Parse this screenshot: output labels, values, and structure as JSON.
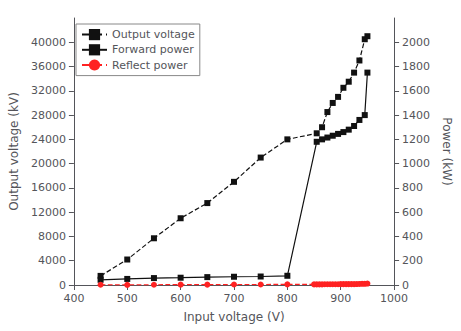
{
  "chart_data": {
    "type": "line",
    "xlabel": "Input voltage (V)",
    "ylabel": "Output voltage (kV)",
    "y2label": "Power (kW)",
    "xlim": [
      400,
      1000
    ],
    "xticks": [
      400,
      500,
      600,
      700,
      800,
      900,
      1000
    ],
    "ylim": [
      0,
      44000
    ],
    "yticks": [
      0,
      4000,
      8000,
      12000,
      16000,
      20000,
      24000,
      28000,
      32000,
      36000,
      40000
    ],
    "y2lim": [
      0,
      2200
    ],
    "y2ticks": [
      0,
      200,
      400,
      600,
      800,
      1000,
      1200,
      1400,
      1600,
      1800,
      2000
    ],
    "grid": false,
    "legend": "upper left",
    "series": [
      {
        "name": "Output voltage",
        "axis": "y",
        "color": "#111111",
        "marker": "square",
        "line_style": "dashed",
        "x": [
          450,
          500,
          550,
          600,
          650,
          700,
          750,
          800,
          855,
          865,
          875,
          885,
          895,
          905,
          915,
          925,
          935,
          945,
          950
        ],
        "values": [
          1500,
          4200,
          7700,
          11000,
          13500,
          17000,
          21000,
          24000,
          25000,
          26000,
          28500,
          30000,
          31000,
          32500,
          33500,
          35000,
          37000,
          40500,
          41000
        ]
      },
      {
        "name": "Forward power",
        "axis": "y2",
        "color": "#111111",
        "marker": "square",
        "line_style": "solid",
        "x": [
          450,
          500,
          550,
          600,
          650,
          700,
          750,
          800,
          855,
          865,
          875,
          885,
          895,
          905,
          915,
          925,
          935,
          945,
          950
        ],
        "values": [
          43,
          50,
          57,
          60,
          65,
          68,
          70,
          76,
          1180,
          1200,
          1215,
          1230,
          1245,
          1260,
          1280,
          1310,
          1360,
          1400,
          1750
        ]
      },
      {
        "name": "Reflect power",
        "axis": "y2",
        "color": "#ff2222",
        "marker": "circle",
        "line_style": "dashed",
        "x": [
          450,
          500,
          550,
          600,
          650,
          700,
          750,
          800,
          850,
          855,
          860,
          865,
          870,
          875,
          880,
          885,
          890,
          895,
          900,
          905,
          910,
          915,
          920,
          925,
          930,
          935,
          940,
          945,
          950
        ],
        "values": [
          2,
          1,
          2,
          3,
          3,
          4,
          4,
          5,
          5,
          5,
          5,
          5,
          6,
          6,
          6,
          6,
          6,
          6,
          7,
          7,
          7,
          7,
          7,
          7,
          8,
          9,
          10,
          10,
          12
        ]
      }
    ]
  }
}
